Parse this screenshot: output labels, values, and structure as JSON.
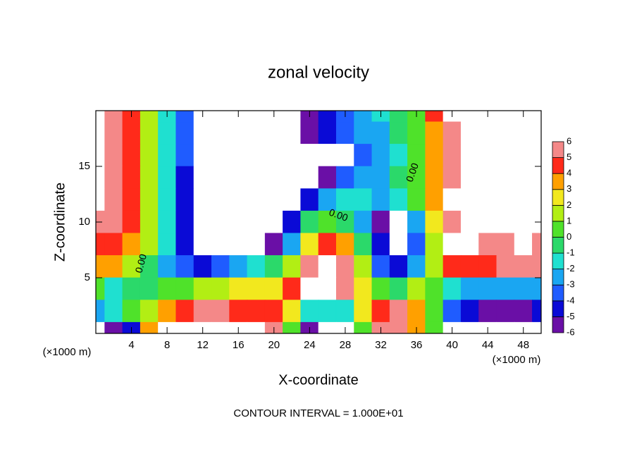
{
  "chart_data": {
    "type": "contour",
    "title": "zonal velocity",
    "xlabel": "X-coordinate",
    "ylabel": "Z-coordinate",
    "yunit": "(×1000 m)",
    "xunit": "(×1000 m)",
    "annotation": "CONTOUR INTERVAL = 1.000E+01",
    "contour_labels": [
      "0.00",
      "0.00",
      "0.00"
    ],
    "xlim": [
      0,
      50
    ],
    "ylim": [
      0,
      20
    ],
    "xticks": [
      4,
      8,
      12,
      16,
      20,
      24,
      28,
      32,
      36,
      40,
      44,
      48
    ],
    "yticks": [
      5,
      10,
      15
    ],
    "x": [
      0,
      2,
      4,
      6,
      8,
      10,
      12,
      14,
      16,
      18,
      20,
      22,
      24,
      26,
      28,
      30,
      32,
      34,
      36,
      38,
      40,
      42,
      44,
      46,
      48,
      50
    ],
    "y": [
      20,
      18,
      16,
      14,
      12,
      10,
      8,
      6,
      4,
      2,
      0
    ],
    "z": [
      [
        8,
        5,
        4,
        1,
        -2,
        -4,
        -9,
        -9,
        -9,
        -9,
        -9,
        -9,
        -5.5,
        -5,
        -4,
        -3,
        -2,
        -1,
        0.5,
        4,
        6.5,
        9,
        9,
        9,
        9,
        9
      ],
      [
        9,
        5.5,
        4.5,
        1,
        -2,
        -4,
        -7,
        -9,
        -9,
        -9,
        -9,
        -9,
        -6,
        -5,
        -4,
        -3,
        -2.5,
        -1,
        0,
        3,
        5.5,
        9,
        9,
        9,
        9,
        9
      ],
      [
        9,
        6,
        4.5,
        1.5,
        -2,
        -4,
        -7,
        -9,
        -9,
        -9,
        -9,
        -9,
        -9,
        -9,
        -7,
        -4,
        -2.5,
        -1.5,
        0,
        3,
        5,
        9,
        9,
        9,
        9,
        9
      ],
      [
        9,
        6,
        4.5,
        1.5,
        -2,
        -4.5,
        -7,
        -9,
        -9,
        -9,
        -9,
        -9,
        -9,
        -6,
        -4,
        -3,
        -2.5,
        -1,
        0.5,
        3,
        5.5,
        9,
        9,
        9,
        9,
        9
      ],
      [
        7,
        5.5,
        4,
        1.5,
        -2,
        -4.5,
        -6.5,
        -9,
        -9,
        -9,
        -9,
        -7,
        -5,
        -3,
        -2,
        -2,
        -3,
        -2,
        0,
        3,
        6.5,
        9,
        9,
        9,
        9,
        9
      ],
      [
        6,
        5,
        4,
        1.5,
        -2,
        -4.5,
        -7,
        -9,
        -9,
        -9,
        -6.5,
        -5,
        -1,
        0.5,
        -0.5,
        -3,
        -6,
        -9,
        -3,
        2,
        6,
        9,
        9,
        6.5,
        9,
        9
      ],
      [
        4.5,
        4,
        3,
        1,
        -2,
        -4.5,
        -6.5,
        -9,
        -9,
        -8,
        -5.5,
        -3,
        2,
        4,
        3,
        -1,
        -5,
        -7,
        -4,
        1,
        6.5,
        9,
        6,
        5,
        7,
        6
      ],
      [
        3.5,
        3,
        1,
        -1,
        -3,
        -4,
        -5,
        -4,
        -3,
        -2,
        -1,
        1.5,
        5,
        9,
        5,
        1,
        -4,
        -5,
        -3,
        1,
        4,
        4,
        4.5,
        5,
        6,
        6
      ],
      [
        0,
        -2,
        -1,
        -1,
        0.5,
        0.5,
        1,
        1.5,
        2,
        2,
        2.5,
        4,
        8,
        9,
        6,
        2,
        0,
        -1,
        1,
        0,
        -2,
        -2.5,
        -3,
        -3,
        -3,
        -3
      ],
      [
        -3,
        -2,
        0,
        1,
        3,
        4,
        6,
        5,
        4.5,
        4,
        4,
        2,
        -2,
        -2,
        -2,
        2,
        4,
        5,
        3,
        0,
        -4,
        -5,
        -6,
        -6,
        -6,
        -5
      ],
      [
        -7,
        -6,
        -5,
        3,
        7,
        9,
        9,
        9,
        9,
        9,
        6,
        0,
        -6,
        -9,
        -7,
        0,
        5,
        6,
        3,
        0,
        -7,
        -9,
        -9,
        -9,
        -9,
        -9
      ]
    ],
    "colorbar_ticks": [
      -6,
      -5,
      -4,
      -3,
      -2,
      -1,
      0,
      1,
      2,
      3,
      4,
      5,
      6
    ],
    "colors": [
      "#6a0fa6",
      "#0a0ad6",
      "#1f5cff",
      "#1aa6f2",
      "#1fe0d0",
      "#2bd96a",
      "#4fe22a",
      "#b2ee14",
      "#f2e81e",
      "#ffa000",
      "#ff2a1a",
      "#f48888"
    ],
    "out_of_range_color": "#ffffff"
  }
}
